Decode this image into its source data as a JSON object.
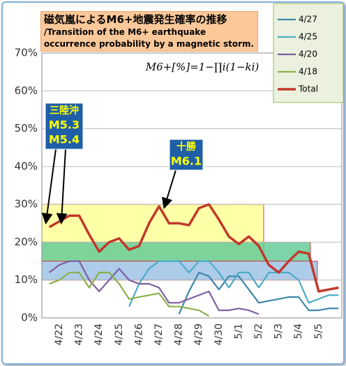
{
  "chart_data": {
    "type": "line",
    "title": "磁気嵐によるM6+地震発生確率の推移",
    "subtitle": "/Transition of the M6+ earthquake occurrence probability by a magnetic storm.",
    "formula": "M6+[%]=1−∏i(1−ki)",
    "categories": [
      null,
      "4/22",
      null,
      "4/23",
      null,
      "4/24",
      null,
      "4/25",
      null,
      "4/26",
      null,
      "4/27",
      null,
      "4/28",
      null,
      "4/29",
      null,
      "4/30",
      null,
      "5/1",
      null,
      "5/2",
      null,
      "5/3",
      null,
      "5/4",
      null,
      "5/5",
      null,
      null
    ],
    "series": [
      {
        "name": "4/27",
        "color": "#3f86a8",
        "values": [
          null,
          null,
          null,
          null,
          null,
          null,
          null,
          null,
          null,
          null,
          null,
          null,
          null,
          1,
          7,
          12,
          11,
          7.5,
          11,
          11,
          7.5,
          4,
          4.5,
          5,
          5.5,
          5.5,
          2,
          2,
          2.5,
          2.5
        ]
      },
      {
        "name": "4/25",
        "color": "#4bacc6",
        "values": [
          null,
          null,
          null,
          null,
          null,
          null,
          null,
          null,
          3,
          9,
          13,
          15,
          15,
          15,
          12,
          15,
          15,
          12,
          8,
          12,
          12,
          8,
          12,
          12,
          12,
          10,
          4,
          5,
          6,
          6
        ]
      },
      {
        "name": "4/20",
        "color": "#7d5fa0",
        "values": [
          12,
          14,
          15,
          15,
          10,
          7,
          10,
          13,
          10,
          9,
          9,
          8,
          4,
          4,
          5,
          6,
          7,
          2,
          2,
          2.5,
          2,
          1,
          null,
          null,
          null,
          null,
          null,
          null,
          null,
          null
        ]
      },
      {
        "name": "4/18",
        "color": "#8cb04a",
        "values": [
          9,
          10,
          12,
          12,
          8,
          12,
          12,
          9,
          5,
          5.5,
          6,
          6.5,
          3,
          3,
          2.5,
          2,
          0.5,
          null,
          null,
          null,
          null,
          null,
          null,
          null,
          null,
          null,
          null,
          null,
          null,
          null
        ]
      },
      {
        "name": "Total",
        "color": "#c0392b",
        "values": [
          24,
          25.5,
          27,
          27,
          22,
          17.5,
          20,
          21,
          18,
          19,
          25,
          29.5,
          25,
          25,
          24.5,
          29,
          30,
          26,
          21.5,
          19.5,
          21.5,
          19,
          14,
          12,
          15,
          17.5,
          17,
          7,
          7.5,
          8
        ]
      }
    ],
    "bands": [
      {
        "ylim": [
          15,
          30
        ],
        "color": "#ffff99"
      },
      {
        "ylim": [
          15,
          20
        ],
        "color": "#66cc99"
      },
      {
        "ylim": [
          10,
          15
        ],
        "color": "#9dc3e6"
      }
    ],
    "annotations": [
      {
        "lines": [
          "三陸沖",
          "M5.3",
          "M5.4"
        ]
      },
      {
        "lines": [
          "十勝",
          "M6.1"
        ]
      }
    ],
    "ylim": [
      0,
      70
    ],
    "yticks": [
      {
        "value": 0,
        "label": "0%"
      },
      {
        "value": 10,
        "label": "10%"
      },
      {
        "value": 20,
        "label": "20%"
      },
      {
        "value": 30,
        "label": "30%"
      },
      {
        "value": 40,
        "label": "40%"
      },
      {
        "value": 50,
        "label": "50%"
      },
      {
        "value": 60,
        "label": "60%"
      },
      {
        "value": 70,
        "label": "70%"
      }
    ],
    "grid": true,
    "legend": "top-right"
  }
}
